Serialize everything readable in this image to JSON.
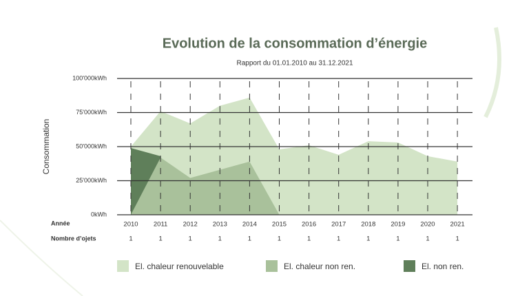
{
  "chart_data": {
    "type": "area",
    "title": "Evolution de la consommation d’énergie",
    "subtitle": "Rapport du 01.01.2010 au 31.12.2021",
    "ylabel": "Consommation",
    "xlabel": "Année",
    "count_label": "Nombre d’ojets",
    "categories": [
      "2010",
      "2011",
      "2012",
      "2013",
      "2014",
      "2015",
      "2016",
      "2017",
      "2018",
      "2019",
      "2020",
      "2021"
    ],
    "object_counts": [
      1,
      1,
      1,
      1,
      1,
      1,
      1,
      1,
      1,
      1,
      1,
      1
    ],
    "ylim": [
      0,
      100000
    ],
    "yticks": [
      {
        "value": 0,
        "label": "0kWh"
      },
      {
        "value": 25000,
        "label": "25'000kWh"
      },
      {
        "value": 50000,
        "label": "50'000kWh"
      },
      {
        "value": 75000,
        "label": "75'000kWh"
      },
      {
        "value": 100000,
        "label": "100'000kWh"
      }
    ],
    "grid": true,
    "series": [
      {
        "name": "El. chaleur renouvelable",
        "color": "#d3e4c7",
        "values": [
          50000,
          76000,
          67000,
          80000,
          86000,
          48000,
          51000,
          44000,
          54000,
          53000,
          43000,
          39000
        ]
      },
      {
        "name": "El. chaleur non ren.",
        "color": "#a9c19b",
        "values": [
          0,
          42000,
          27000,
          33000,
          39000,
          0,
          null,
          null,
          null,
          null,
          null,
          null
        ]
      },
      {
        "name": "El.  non ren.",
        "color": "#5f7f5a",
        "values": [
          49000,
          43000,
          null,
          null,
          null,
          null,
          null,
          null,
          null,
          null,
          null,
          null
        ]
      }
    ]
  }
}
